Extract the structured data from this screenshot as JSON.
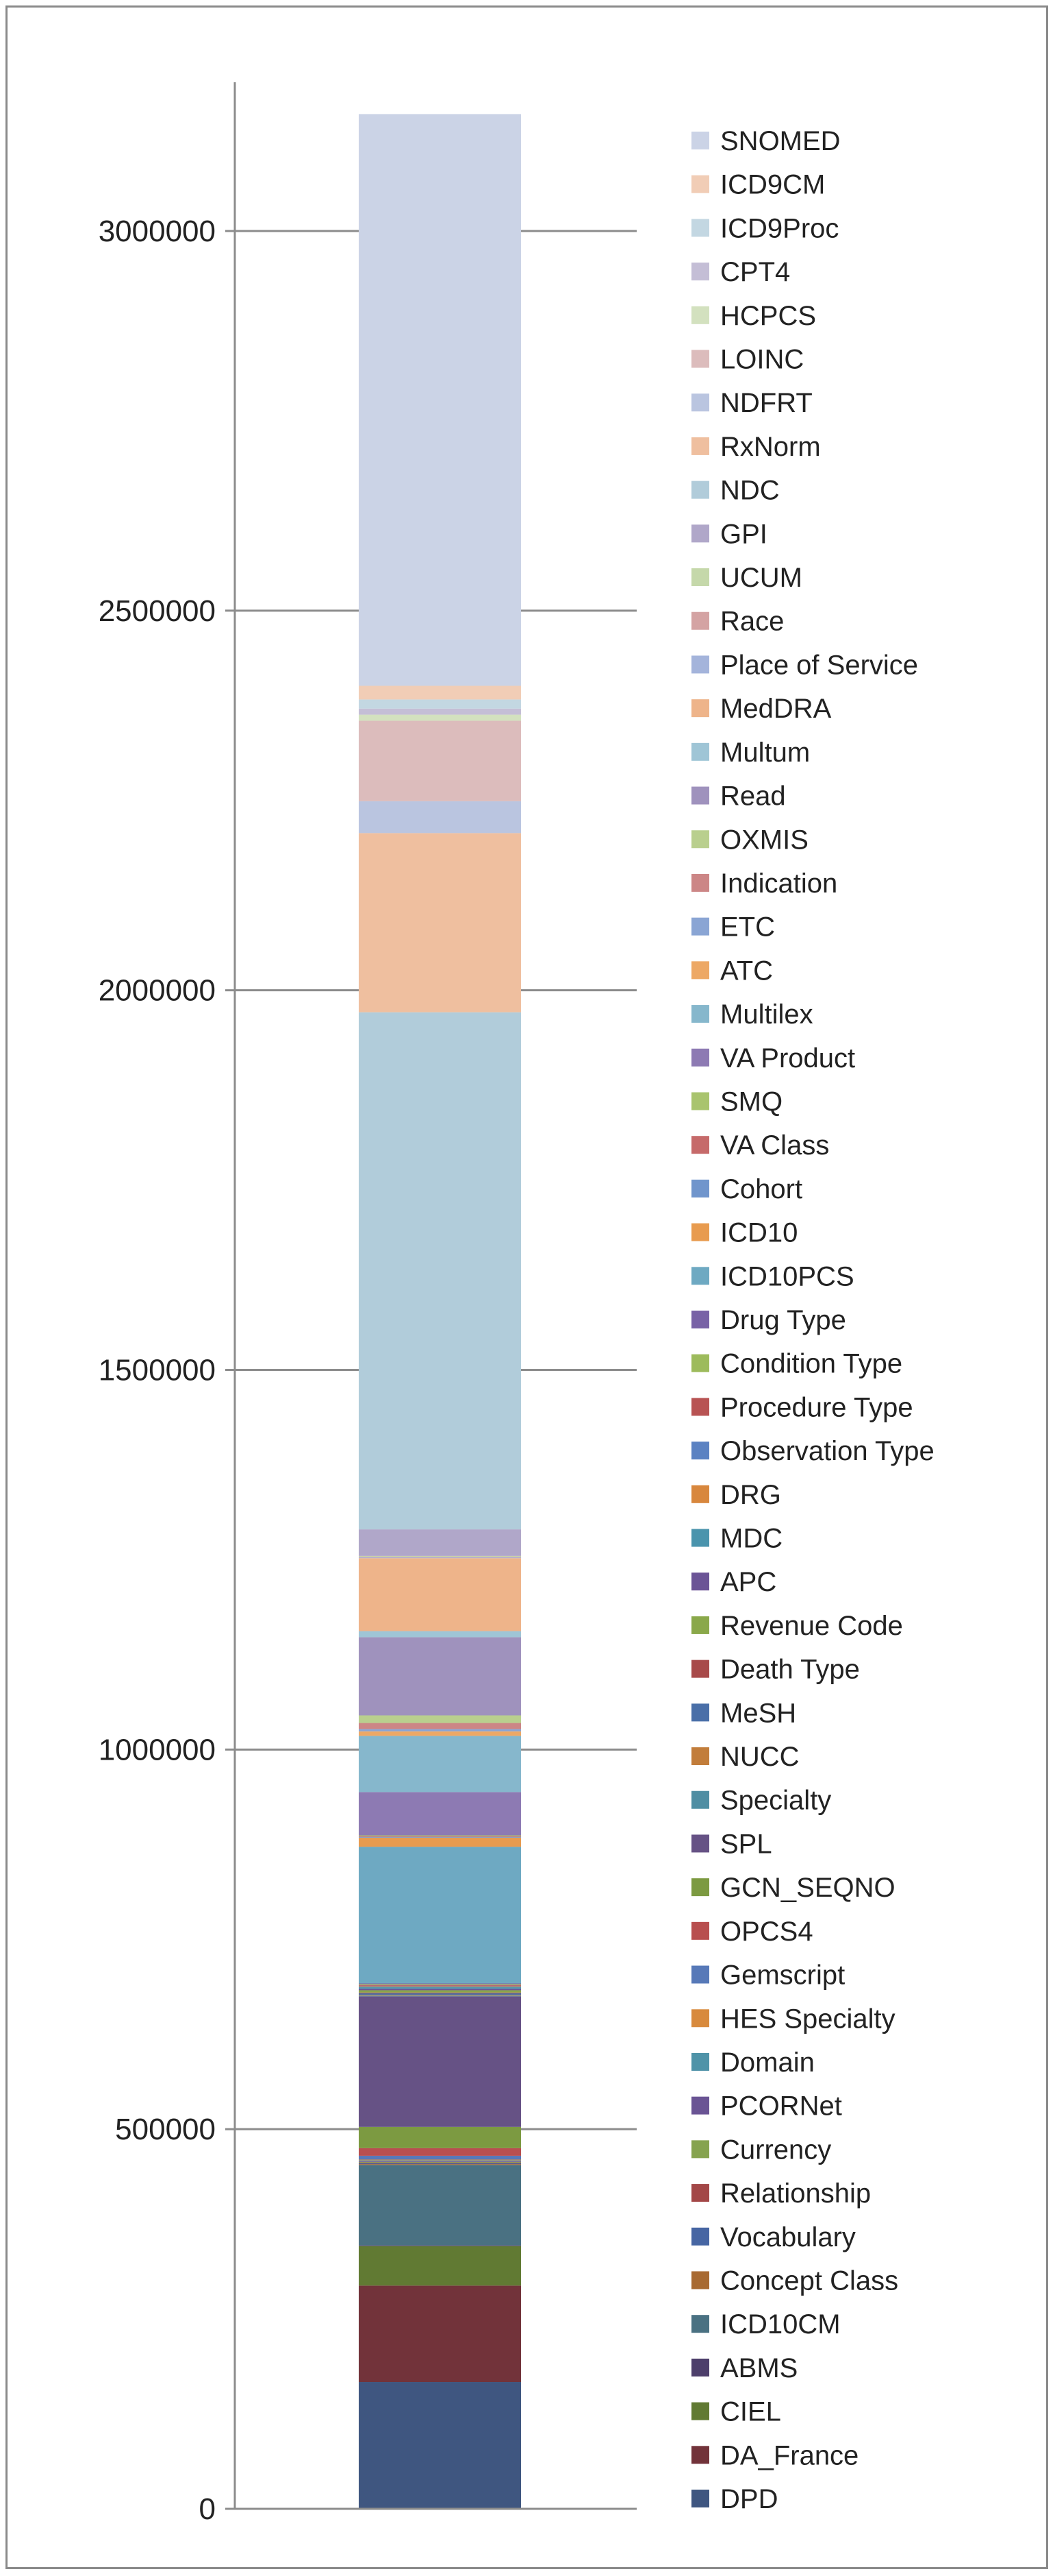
{
  "chart_data": {
    "type": "bar",
    "stacked": true,
    "categories": [
      ""
    ],
    "ylim": [
      0,
      3000000
    ],
    "y_ticks": [
      "0",
      "500000",
      "1000000",
      "1500000",
      "2000000",
      "2500000",
      "3000000"
    ],
    "grid": true,
    "legend_position": "right",
    "series": [
      {
        "name": "DPD",
        "value": 167000,
        "color": "#3f5680"
      },
      {
        "name": "DA_France",
        "value": 127000,
        "color": "#72333a"
      },
      {
        "name": "CIEL",
        "value": 52000,
        "color": "#617a33"
      },
      {
        "name": "ABMS",
        "value": 1000,
        "color": "#4d3f6b"
      },
      {
        "name": "ICD10CM",
        "value": 106000,
        "color": "#4a7182"
      },
      {
        "name": "Concept Class",
        "value": 1000,
        "color": "#a86a32"
      },
      {
        "name": "Vocabulary",
        "value": 1000,
        "color": "#4766a3"
      },
      {
        "name": "Relationship",
        "value": 1000,
        "color": "#a34747"
      },
      {
        "name": "Currency",
        "value": 1000,
        "color": "#86a34f"
      },
      {
        "name": "PCORNet",
        "value": 1000,
        "color": "#6a5494"
      },
      {
        "name": "Domain",
        "value": 1000,
        "color": "#4f93a8"
      },
      {
        "name": "HES Specialty",
        "value": 1000,
        "color": "#d88a3d"
      },
      {
        "name": "Gemscript",
        "value": 5000,
        "color": "#5779b8"
      },
      {
        "name": "OPCS4",
        "value": 10000,
        "color": "#b84f4f"
      },
      {
        "name": "GCN_SEQNO",
        "value": 28000,
        "color": "#7c9a41"
      },
      {
        "name": "SPL",
        "value": 172000,
        "color": "#665285"
      },
      {
        "name": "Specialty",
        "value": 1000,
        "color": "#4f8ea3"
      },
      {
        "name": "NUCC",
        "value": 1000,
        "color": "#c27d3b"
      },
      {
        "name": "MeSH",
        "value": 2000,
        "color": "#4a6fa8"
      },
      {
        "name": "Death Type",
        "value": 1000,
        "color": "#a84a4a"
      },
      {
        "name": "Revenue Code",
        "value": 3000,
        "color": "#8aa84a"
      },
      {
        "name": "APC",
        "value": 2000,
        "color": "#6b5496"
      },
      {
        "name": "MDC",
        "value": 2000,
        "color": "#4a94ad"
      },
      {
        "name": "DRG",
        "value": 1000,
        "color": "#d8873d"
      },
      {
        "name": "Observation Type",
        "value": 1000,
        "color": "#5b82c2"
      },
      {
        "name": "Procedure Type",
        "value": 1000,
        "color": "#b85353"
      },
      {
        "name": "Condition Type",
        "value": 1000,
        "color": "#9dbb5c"
      },
      {
        "name": "Drug Type",
        "value": 1000,
        "color": "#7862a6"
      },
      {
        "name": "ICD10PCS",
        "value": 180000,
        "color": "#6ea9c2"
      },
      {
        "name": "ICD10",
        "value": 12000,
        "color": "#e89b4f"
      },
      {
        "name": "Cohort",
        "value": 1000,
        "color": "#7095cc"
      },
      {
        "name": "VA Class",
        "value": 1000,
        "color": "#c66a6a"
      },
      {
        "name": "SMQ",
        "value": 1000,
        "color": "#a9c46e"
      },
      {
        "name": "VA Product",
        "value": 57000,
        "color": "#8d7ab3"
      },
      {
        "name": "Multilex",
        "value": 74000,
        "color": "#86b7cc"
      },
      {
        "name": "ATC",
        "value": 6000,
        "color": "#eda865"
      },
      {
        "name": "ETC",
        "value": 3000,
        "color": "#8aa5d4"
      },
      {
        "name": "Indication",
        "value": 8000,
        "color": "#cc8686"
      },
      {
        "name": "OXMIS",
        "value": 10000,
        "color": "#b9cf8e"
      },
      {
        "name": "Read",
        "value": 103000,
        "color": "#9f92bd"
      },
      {
        "name": "Multum",
        "value": 8000,
        "color": "#9fc5d6"
      },
      {
        "name": "MedDRA",
        "value": 96000,
        "color": "#eeb48a"
      },
      {
        "name": "Place of Service",
        "value": 1000,
        "color": "#a4b4db"
      },
      {
        "name": "Race",
        "value": 1000,
        "color": "#d4a3a3"
      },
      {
        "name": "UCUM",
        "value": 1000,
        "color": "#c5d8aa"
      },
      {
        "name": "GPI",
        "value": 35000,
        "color": "#b0a7c9"
      },
      {
        "name": "NDC",
        "value": 681000,
        "color": "#b1ccda"
      },
      {
        "name": "RxNorm",
        "value": 236000,
        "color": "#efbf9f"
      },
      {
        "name": "NDFRT",
        "value": 42000,
        "color": "#bac5e0"
      },
      {
        "name": "LOINC",
        "value": 106000,
        "color": "#dcbcbc"
      },
      {
        "name": "HCPCS",
        "value": 8000,
        "color": "#d3e1bf"
      },
      {
        "name": "CPT4",
        "value": 8000,
        "color": "#c4bed6"
      },
      {
        "name": "ICD9Proc",
        "value": 12000,
        "color": "#c3d7e2"
      },
      {
        "name": "ICD9CM",
        "value": 18000,
        "color": "#f1cdb6"
      },
      {
        "name": "SNOMED",
        "value": 753000,
        "color": "#cbd3e6"
      }
    ]
  }
}
